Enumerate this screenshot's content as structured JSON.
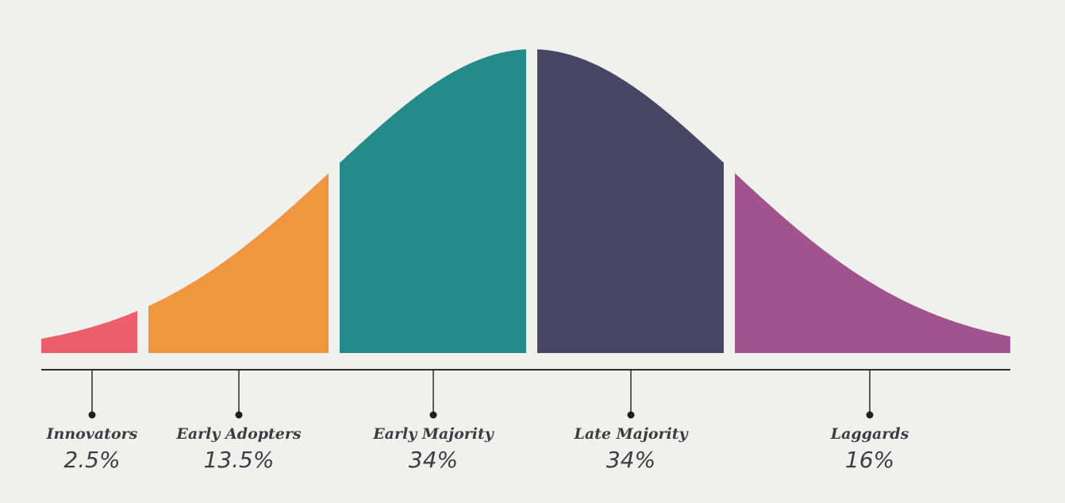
{
  "chart_data": {
    "type": "area",
    "title": "",
    "xlabel": "",
    "ylabel": "",
    "grid": false,
    "legend": "none",
    "distribution": "normal",
    "segments": [
      {
        "name": "Innovators",
        "label": "2.5%",
        "value": 2.5,
        "color": "#ec5e6b"
      },
      {
        "name": "Early Adopters",
        "label": "13.5%",
        "value": 13.5,
        "color": "#f0963e"
      },
      {
        "name": "Early Majority",
        "label": "34%",
        "value": 34,
        "color": "#238b89"
      },
      {
        "name": "Late Majority",
        "label": "34%",
        "value": 34,
        "color": "#464764"
      },
      {
        "name": "Laggards",
        "label": "16%",
        "value": 16,
        "color": "#a1538e"
      }
    ]
  }
}
